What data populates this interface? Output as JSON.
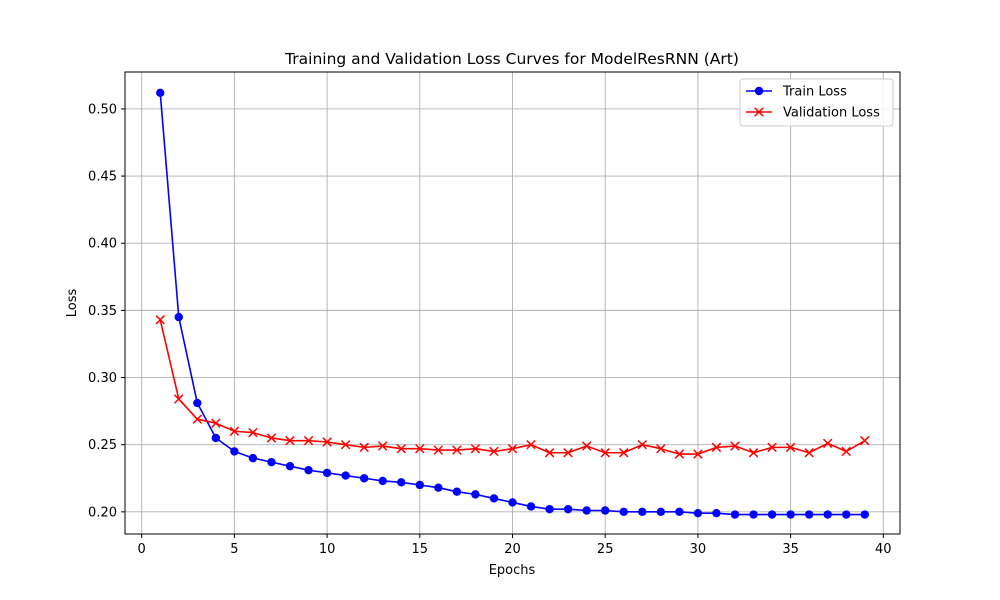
{
  "chart_data": {
    "type": "line",
    "title": "Training and Validation Loss Curves for ModelResRNN (Art)",
    "xlabel": "Epochs",
    "ylabel": "Loss",
    "xlim": [
      -0.9,
      40.9
    ],
    "ylim": [
      0.1835,
      0.5275
    ],
    "x_ticks": [
      0,
      5,
      10,
      15,
      20,
      25,
      30,
      35,
      40
    ],
    "y_ticks": [
      0.2,
      0.25,
      0.3,
      0.35,
      0.4,
      0.45,
      0.5
    ],
    "x_tick_labels": [
      "0",
      "5",
      "10",
      "15",
      "20",
      "25",
      "30",
      "35",
      "40"
    ],
    "y_tick_labels": [
      "0.20",
      "0.25",
      "0.30",
      "0.35",
      "0.40",
      "0.45",
      "0.50"
    ],
    "grid": true,
    "legend_position": "top-right",
    "x": [
      1,
      2,
      3,
      4,
      5,
      6,
      7,
      8,
      9,
      10,
      11,
      12,
      13,
      14,
      15,
      16,
      17,
      18,
      19,
      20,
      21,
      22,
      23,
      24,
      25,
      26,
      27,
      28,
      29,
      30,
      31,
      32,
      33,
      34,
      35,
      36,
      37,
      38,
      39
    ],
    "series": [
      {
        "name": "Train Loss",
        "color": "#0000ff",
        "marker": "circle",
        "values": [
          0.512,
          0.345,
          0.281,
          0.255,
          0.245,
          0.24,
          0.237,
          0.234,
          0.231,
          0.229,
          0.227,
          0.225,
          0.223,
          0.222,
          0.22,
          0.218,
          0.215,
          0.213,
          0.21,
          0.207,
          0.204,
          0.202,
          0.202,
          0.201,
          0.201,
          0.2,
          0.2,
          0.2,
          0.2,
          0.199,
          0.199,
          0.198,
          0.198,
          0.198,
          0.198,
          0.198,
          0.198,
          0.198,
          0.198
        ]
      },
      {
        "name": "Validation Loss",
        "color": "#ff0000",
        "marker": "x",
        "values": [
          0.343,
          0.284,
          0.269,
          0.266,
          0.26,
          0.259,
          0.255,
          0.253,
          0.253,
          0.252,
          0.25,
          0.248,
          0.249,
          0.247,
          0.247,
          0.246,
          0.246,
          0.247,
          0.245,
          0.247,
          0.25,
          0.244,
          0.244,
          0.249,
          0.244,
          0.244,
          0.25,
          0.247,
          0.243,
          0.243,
          0.248,
          0.249,
          0.244,
          0.248,
          0.248,
          0.244,
          0.251,
          0.245,
          0.253
        ]
      }
    ]
  }
}
